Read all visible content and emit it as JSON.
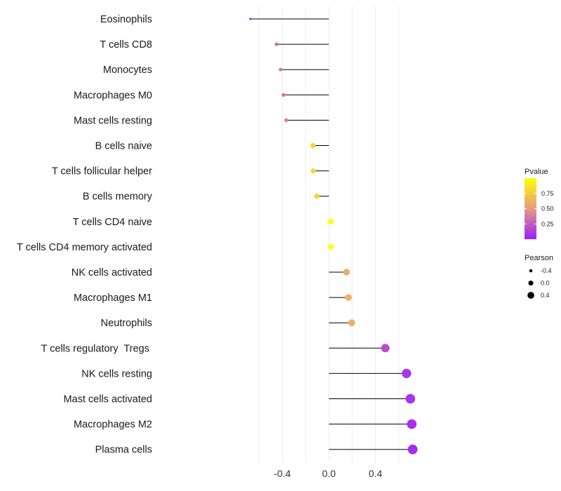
{
  "chart_data": {
    "type": "lollipop",
    "title": "",
    "xlabel": "",
    "ylabel": "",
    "xlim": [
      -0.8,
      0.78
    ],
    "x_ticks": [
      {
        "value": -0.4,
        "label": "-0.4"
      },
      {
        "value": 0.0,
        "label": "0.0"
      },
      {
        "value": 0.4,
        "label": "0.4"
      }
    ],
    "categories": [
      "Eosinophils",
      "T cells CD8",
      "Monocytes",
      "Macrophages M0",
      "Mast cells resting",
      "B cells naive",
      "T cells follicular helper",
      "B cells memory",
      "T cells CD4 naive",
      "T cells CD4 memory activated",
      "NK cells activated",
      "Macrophages M1",
      "Neutrophils",
      "T cells regulatory  Tregs ",
      "NK cells resting",
      "Mast cells activated",
      "Macrophages M2",
      "Plasma cells"
    ],
    "pearson": [
      -0.675,
      -0.45,
      -0.415,
      -0.39,
      -0.367,
      -0.136,
      -0.134,
      -0.105,
      0.016,
      0.017,
      0.152,
      0.168,
      0.196,
      0.485,
      0.667,
      0.7,
      0.712,
      0.72
    ],
    "pvalue": [
      0.02,
      0.3,
      0.38,
      0.35,
      0.4,
      0.78,
      0.8,
      0.8,
      0.99,
      0.99,
      0.6,
      0.62,
      0.6,
      0.18,
      0.1,
      0.08,
      0.07,
      0.05
    ],
    "legend_color": {
      "title": "Pvalue",
      "ticks": [
        "0.75",
        "0.50",
        "0.25"
      ],
      "tick_values": [
        0.75,
        0.5,
        0.25
      ],
      "range": [
        0.0,
        1.0
      ],
      "low_color": "#9B1FFF",
      "mid_color": "#E79A80",
      "high_color": "#FFFF00"
    },
    "legend_size": {
      "title": "Pearson",
      "labels": [
        "-0.4",
        "0.0",
        "0.4"
      ],
      "values": [
        -0.4,
        0.0,
        0.4
      ]
    },
    "colors": {
      "segment": "#000000",
      "grid": "#ececec"
    }
  }
}
